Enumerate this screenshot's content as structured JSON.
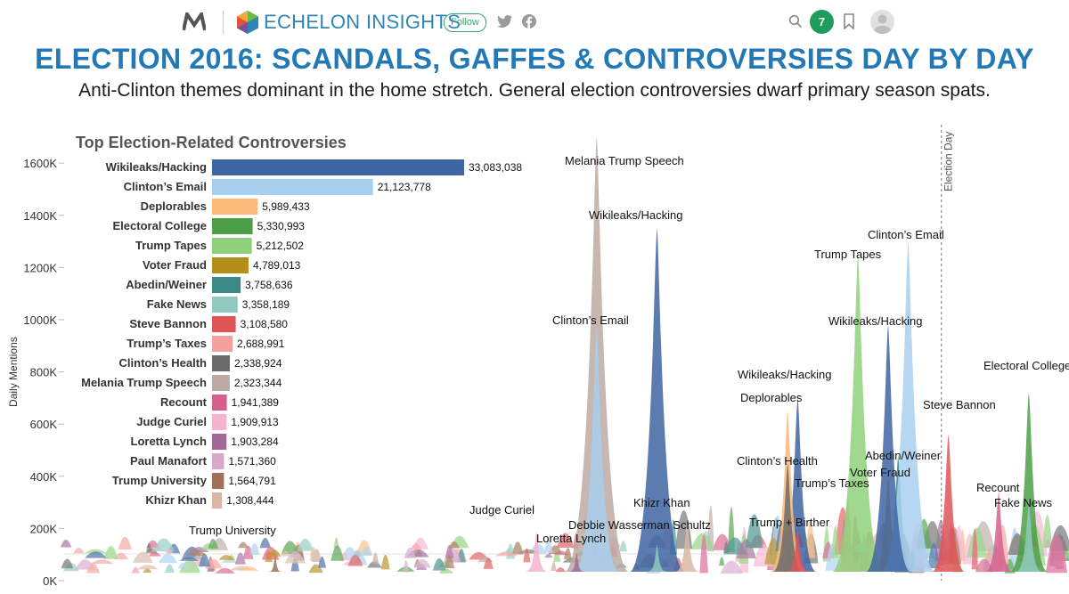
{
  "header": {
    "brand_name": "ECHELON INSIGHTS",
    "follow_label": "Follow",
    "notification_count": "7",
    "icons": [
      "medium-logo-icon",
      "echelon-logo-icon",
      "twitter-icon",
      "facebook-icon",
      "search-icon",
      "bookmark-icon",
      "avatar-icon"
    ],
    "colors": {
      "brand": "#2f86b5",
      "notification": "#1f9d5d"
    }
  },
  "title": "ELECTION 2016: SCANDALS, GAFFES & CONTROVERSIES DAY BY DAY",
  "subtitle": "Anti-Clinton themes dominant in the home stretch. General election controversies dwarf primary season spats.",
  "chart_data": [
    {
      "type": "bar",
      "title": "Top Election-Related Controversies",
      "categories": [
        "Wikileaks/Hacking",
        "Clinton’s Email",
        "Deplorables",
        "Electoral College",
        "Trump Tapes",
        "Voter Fraud",
        "Abedin/Weiner",
        "Fake News",
        "Steve Bannon",
        "Trump’s Taxes",
        "Clinton’s Health",
        "Melania Trump Speech",
        "Recount",
        "Judge Curiel",
        "Loretta Lynch",
        "Paul Manafort",
        "Trump University",
        "Khizr Khan"
      ],
      "values": [
        33083038,
        21123778,
        5989433,
        5330993,
        5212502,
        4789013,
        3758636,
        3358189,
        3108580,
        2688991,
        2338924,
        2323344,
        1941389,
        1909913,
        1903284,
        1571360,
        1564791,
        1308444
      ],
      "value_labels": [
        "33,083,038",
        "21,123,778",
        "5,989,433",
        "5,330,993",
        "5,212,502",
        "4,789,013",
        "3,758,636",
        "3,358,189",
        "3,108,580",
        "2,688,991",
        "2,338,924",
        "2,323,344",
        "1,941,389",
        "1,909,913",
        "1,903,284",
        "1,571,360",
        "1,564,791",
        "1,308,444"
      ],
      "colors": [
        "#3f65a3",
        "#a9cfef",
        "#fbb97a",
        "#4c9f47",
        "#8ed17a",
        "#b38e1a",
        "#3b8a87",
        "#8fc9c0",
        "#df5558",
        "#f4a09f",
        "#6b6b6b",
        "#bcaaa3",
        "#d75f8e",
        "#f6b3cf",
        "#a3689a",
        "#d6a9cd",
        "#a07156",
        "#d8b8a5"
      ]
    },
    {
      "type": "area",
      "description_label": "Daily Mentions",
      "ylabel": "Daily Mentions",
      "ylim": [
        0,
        1600000
      ],
      "y_ticks": [
        "0K",
        "200K",
        "400K",
        "600K",
        "800K",
        "1000K",
        "1200K",
        "1400K",
        "1600K"
      ],
      "vertical_marker": "Election Day",
      "annotations": [
        {
          "label": "Melania Trump Speech",
          "x": 0.53,
          "peak": 1700000,
          "color": "#bcaaa3"
        },
        {
          "label": "Wikileaks/Hacking",
          "x": 0.59,
          "peak": 1350000,
          "color": "#3f65a3"
        },
        {
          "label": "Clinton’s Email",
          "x": 0.53,
          "peak": 970000,
          "color": "#a9cfef"
        },
        {
          "label": "Khizr Khan",
          "x": 0.62,
          "peak": 230000,
          "color": "#d8b8a5"
        },
        {
          "label": "Debbie Wasserman Schultz",
          "x": 0.59,
          "peak": 140000,
          "color": "#8fc9c0"
        },
        {
          "label": "Judge Curiel",
          "x": 0.47,
          "peak": 190000,
          "color": "#f6b3cf"
        },
        {
          "label": "Loretta Lynch",
          "x": 0.51,
          "peak": 110000,
          "color": "#a3689a"
        },
        {
          "label": "Trump University",
          "x": 0.21,
          "peak": 100000,
          "color": "#a07156"
        },
        {
          "label": "Wikileaks/Hacking",
          "x": 0.73,
          "peak": 700000,
          "color": "#3f65a3"
        },
        {
          "label": "Deplorables",
          "x": 0.72,
          "peak": 650000,
          "color": "#fbb97a"
        },
        {
          "label": "Clinton’s Health",
          "x": 0.72,
          "peak": 450000,
          "color": "#6b6b6b"
        },
        {
          "label": "Trump + Birther",
          "x": 0.73,
          "peak": 200000,
          "color": "#df5558"
        },
        {
          "label": "Trump’s Taxes",
          "x": 0.78,
          "peak": 320000,
          "color": "#f4a09f"
        },
        {
          "label": "Voter Fraud",
          "x": 0.82,
          "peak": 400000,
          "color": "#b38e1a"
        },
        {
          "label": "Abedin/Weiner",
          "x": 0.83,
          "peak": 480000,
          "color": "#3b8a87"
        },
        {
          "label": "Trump Tapes",
          "x": 0.79,
          "peak": 1250000,
          "color": "#8ed17a"
        },
        {
          "label": "Clinton’s Email",
          "x": 0.84,
          "peak": 1300000,
          "color": "#a9cfef"
        },
        {
          "label": "Wikileaks/Hacking",
          "x": 0.82,
          "peak": 980000,
          "color": "#3f65a3"
        },
        {
          "label": "Steve Bannon",
          "x": 0.88,
          "peak": 560000,
          "color": "#df5558"
        },
        {
          "label": "Electoral College",
          "x": 0.96,
          "peak": 720000,
          "color": "#4c9f47"
        },
        {
          "label": "Recount",
          "x": 0.93,
          "peak": 340000,
          "color": "#d75f8e"
        },
        {
          "label": "Fake News",
          "x": 0.96,
          "peak": 300000,
          "color": "#8fc9c0"
        }
      ]
    }
  ]
}
